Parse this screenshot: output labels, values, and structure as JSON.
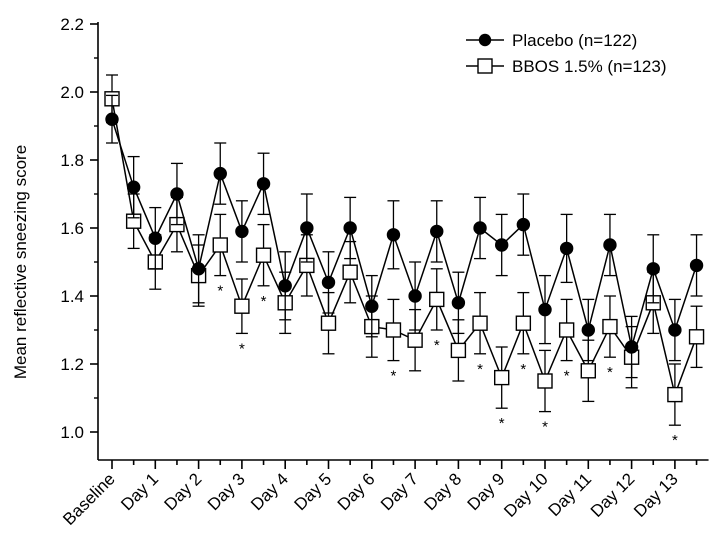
{
  "chart_data": {
    "type": "line",
    "title": "",
    "ylabel": "Mean reflective sneezing score",
    "xlabel": "",
    "ylim": [
      1.0,
      2.2
    ],
    "yticks": [
      1.0,
      1.2,
      1.4,
      1.6,
      1.8,
      2.0,
      2.2
    ],
    "ytick_labels": [
      "1.0",
      "1.2",
      "1.4",
      "1.6",
      "1.8",
      "2.0",
      "2.2"
    ],
    "categories": [
      "Baseline",
      "Day 1",
      "Day 2",
      "Day 3",
      "Day 4",
      "Day 5",
      "Day 6",
      "Day 7",
      "Day 8",
      "Day 9",
      "Day 10",
      "Day 11",
      "Day 12",
      "Day 13"
    ],
    "x_note": "Points are plotted at half-day intervals (AM/PM) between the labeled ticks",
    "legend_position": "top-right",
    "grid": false,
    "series": [
      {
        "name": "Placebo (n=122)",
        "marker": "filled-circle",
        "color": "#000000",
        "x": [
          0,
          0.5,
          1,
          1.5,
          2,
          2.5,
          3,
          3.5,
          4,
          4.5,
          5,
          5.5,
          6,
          6.5,
          7,
          7.5,
          8,
          8.5,
          9,
          9.5,
          10,
          10.5,
          11,
          11.5,
          12,
          12.5,
          13,
          13.5
        ],
        "values": [
          1.92,
          1.72,
          1.57,
          1.7,
          1.48,
          1.76,
          1.59,
          1.73,
          1.43,
          1.6,
          1.44,
          1.6,
          1.37,
          1.58,
          1.4,
          1.59,
          1.38,
          1.6,
          1.55,
          1.61,
          1.36,
          1.54,
          1.3,
          1.55,
          1.25,
          1.48,
          1.3,
          1.49
        ],
        "error": [
          0.07,
          0.09,
          0.09,
          0.09,
          0.1,
          0.09,
          0.09,
          0.09,
          0.1,
          0.1,
          0.09,
          0.09,
          0.09,
          0.1,
          0.1,
          0.09,
          0.09,
          0.09,
          0.09,
          0.09,
          0.1,
          0.1,
          0.09,
          0.09,
          0.09,
          0.1,
          0.09,
          0.09
        ]
      },
      {
        "name": "BBOS 1.5% (n=123)",
        "marker": "open-square",
        "color": "#000000",
        "x": [
          0,
          0.5,
          1,
          1.5,
          2,
          2.5,
          3,
          3.5,
          4,
          4.5,
          5,
          5.5,
          6,
          6.5,
          7,
          7.5,
          8,
          8.5,
          9,
          9.5,
          10,
          10.5,
          11,
          11.5,
          12,
          12.5,
          13,
          13.5
        ],
        "values": [
          1.98,
          1.62,
          1.5,
          1.61,
          1.46,
          1.55,
          1.37,
          1.52,
          1.38,
          1.49,
          1.32,
          1.47,
          1.31,
          1.3,
          1.27,
          1.39,
          1.24,
          1.32,
          1.16,
          1.32,
          1.15,
          1.3,
          1.18,
          1.31,
          1.22,
          1.38,
          1.11,
          1.28
        ],
        "error": [
          0.07,
          0.08,
          0.08,
          0.08,
          0.09,
          0.09,
          0.08,
          0.09,
          0.09,
          0.09,
          0.09,
          0.09,
          0.09,
          0.09,
          0.09,
          0.09,
          0.09,
          0.09,
          0.09,
          0.09,
          0.09,
          0.09,
          0.09,
          0.09,
          0.09,
          0.09,
          0.09,
          0.09
        ]
      }
    ],
    "significance": {
      "symbol": "*",
      "x": [
        2.5,
        3,
        3.5,
        6.5,
        7.5,
        8.5,
        9,
        9.5,
        10,
        10.5,
        11.5,
        13
      ]
    }
  }
}
